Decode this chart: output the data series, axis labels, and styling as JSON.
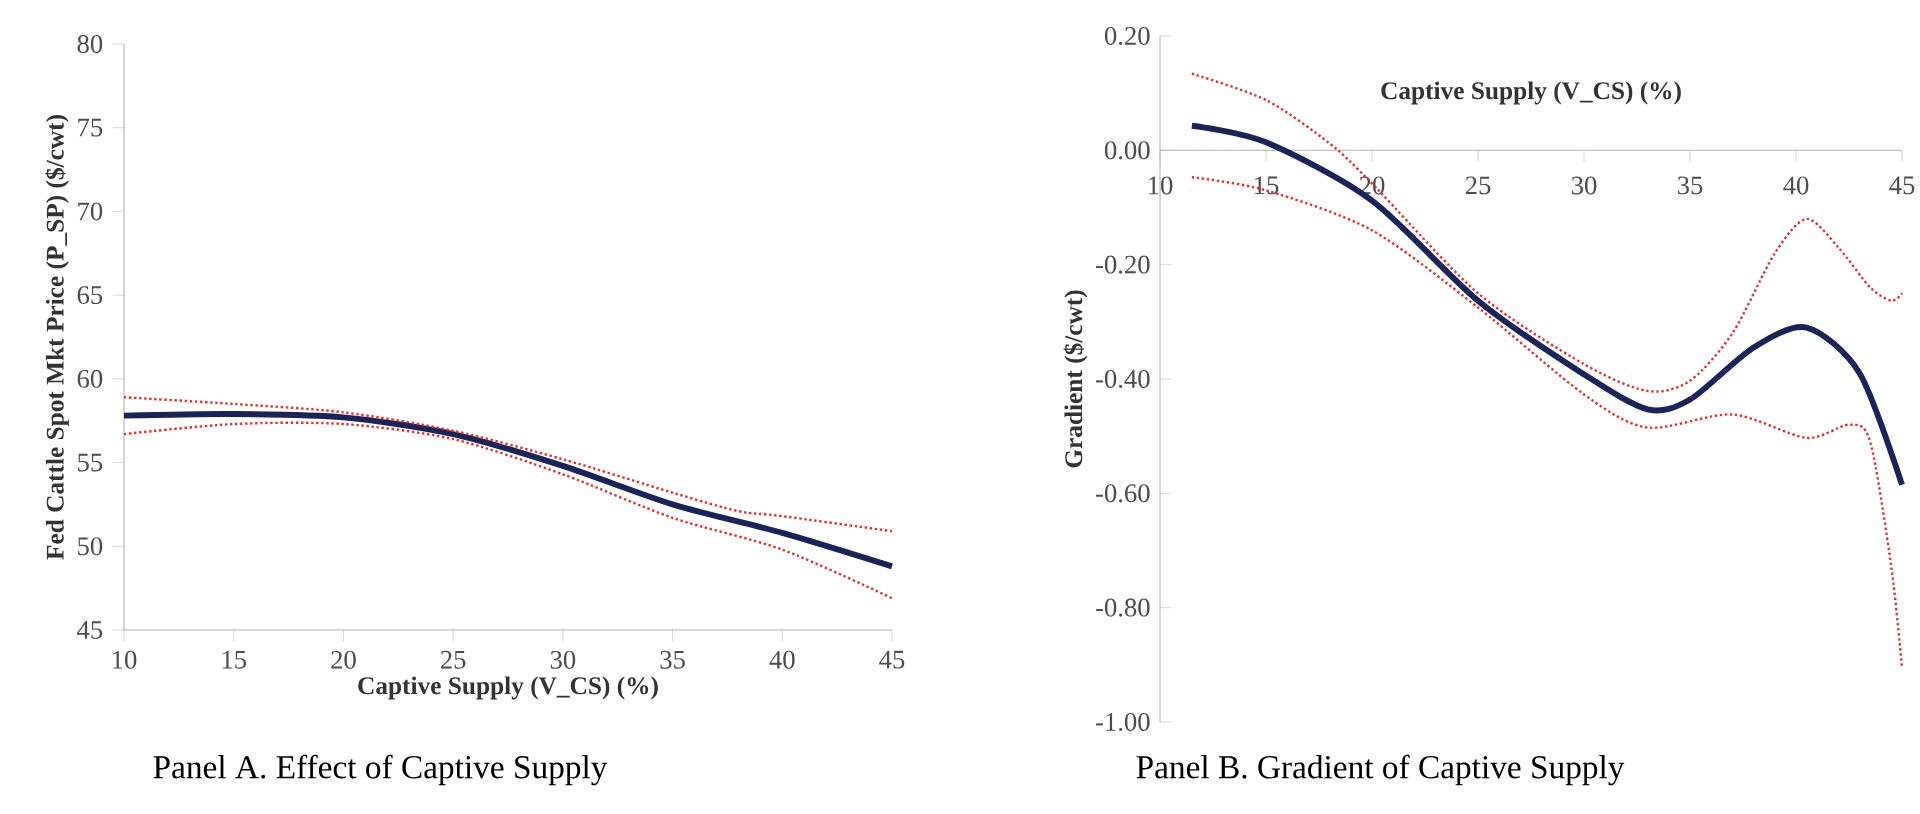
{
  "chart_data": [
    {
      "type": "line",
      "title": "Panel A. Effect of Captive Supply",
      "xlabel": "Captive Supply (V_CS) (%)",
      "ylabel": "Fed Cattle Spot Mkt Price (P_SP) ($/cwt)",
      "xlim": [
        10,
        45
      ],
      "ylim": [
        45,
        80
      ],
      "xticks": [
        10,
        15,
        20,
        25,
        30,
        35,
        40,
        45
      ],
      "yticks": [
        45,
        50,
        55,
        60,
        65,
        70,
        75,
        80
      ],
      "marker": "none",
      "series": [
        {
          "color": "#1a2458",
          "line_style": "solid",
          "x": [
            10,
            15,
            20,
            25,
            30,
            35,
            40,
            45
          ],
          "values": [
            57.8,
            57.9,
            57.7,
            56.7,
            54.8,
            52.5,
            50.8,
            48.8
          ]
        },
        {
          "color": "#e03030",
          "line_style": "dotted",
          "x": [
            10,
            15,
            20,
            25,
            30,
            35,
            38,
            40,
            45
          ],
          "values": [
            58.9,
            58.5,
            58.0,
            56.9,
            55.2,
            53.2,
            52.1,
            51.8,
            50.9
          ]
        },
        {
          "color": "#e03030",
          "line_style": "dotted",
          "x": [
            10,
            15,
            20,
            25,
            30,
            35,
            40,
            45
          ],
          "values": [
            56.7,
            57.3,
            57.3,
            56.4,
            54.3,
            51.7,
            49.8,
            46.9
          ]
        }
      ]
    },
    {
      "type": "line",
      "title": "Panel B. Gradient of Captive Supply",
      "xlabel": "Captive Supply (V_CS) (%)",
      "ylabel": "Gradient ($/cwt)",
      "xlim": [
        10,
        45
      ],
      "ylim": [
        -1,
        0.2
      ],
      "xticks": [
        10,
        15,
        20,
        25,
        30,
        35,
        40,
        45
      ],
      "yticks": [
        {
          "value": 0.2,
          "label": "0.20"
        },
        {
          "value": 0,
          "label": "0.00"
        },
        {
          "value": -0.2,
          "label": "-0.20"
        },
        {
          "value": -0.4,
          "label": "-0.40"
        },
        {
          "value": -0.6,
          "label": "-0.60"
        },
        {
          "value": -0.8,
          "label": "-0.80"
        },
        {
          "value": -1,
          "label": "-1.00"
        }
      ],
      "marker": "none",
      "series": [
        {
          "color": "#1a2458",
          "line_style": "solid",
          "x": [
            11.5,
            15,
            20,
            25,
            30,
            33,
            35,
            38,
            40.5,
            43,
            45
          ],
          "values": [
            0.043,
            0.014,
            -0.088,
            -0.263,
            -0.392,
            -0.453,
            -0.436,
            -0.345,
            -0.31,
            -0.39,
            -0.585
          ]
        },
        {
          "color": "#e03030",
          "line_style": "dotted",
          "x": [
            11.5,
            15,
            18,
            20,
            25,
            30,
            33,
            35,
            37,
            39,
            40.5,
            42,
            43.5,
            44.5,
            45
          ],
          "values": [
            0.134,
            0.088,
            0.012,
            -0.058,
            -0.25,
            -0.374,
            -0.421,
            -0.403,
            -0.32,
            -0.18,
            -0.12,
            -0.17,
            -0.24,
            -0.263,
            -0.25
          ]
        },
        {
          "color": "#e03030",
          "line_style": "dotted",
          "x": [
            11.5,
            15,
            20,
            25,
            30,
            33,
            37,
            40.5,
            42.5,
            43.5,
            44.5,
            45
          ],
          "values": [
            -0.047,
            -0.07,
            -0.14,
            -0.275,
            -0.427,
            -0.485,
            -0.462,
            -0.503,
            -0.48,
            -0.51,
            -0.73,
            -0.906
          ]
        }
      ]
    }
  ]
}
